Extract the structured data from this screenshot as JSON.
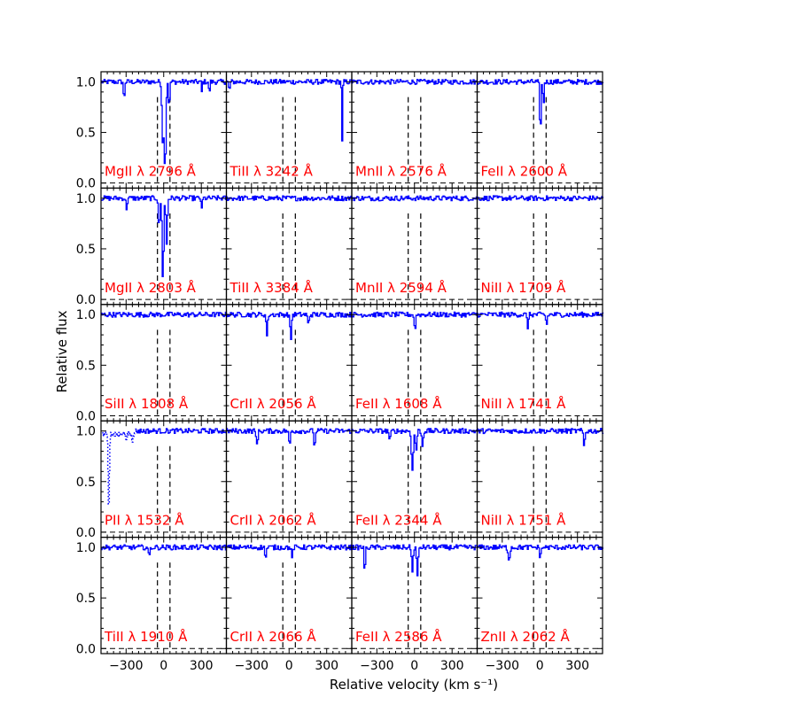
{
  "chart_data": {
    "type": "line",
    "xlabel": "Relative velocity (km s⁻¹)",
    "ylabel": "Relative flux",
    "xlim": [
      -500,
      500
    ],
    "ylim": [
      -0.05,
      1.1
    ],
    "xticks": [
      -300,
      0,
      300
    ],
    "yticks": [
      0.0,
      0.5,
      1.0
    ],
    "xtick_labels": [
      "−300",
      "0",
      "300"
    ],
    "ytick_labels": [
      "0.0",
      "0.5",
      "1.0"
    ],
    "component_markers": [
      -50,
      50
    ],
    "line_color": "#0000ff",
    "label_color": "#ff0000",
    "panels": [
      {
        "label": "MgII λ 2796 Å",
        "absorption": [
          {
            "v": -320,
            "depth": 0.2,
            "w": 6
          },
          {
            "v": -10,
            "depth": 0.6,
            "w": 10
          },
          {
            "v": 8,
            "depth": 0.85,
            "w": 9
          },
          {
            "v": 40,
            "depth": 0.3,
            "w": 6
          },
          {
            "v": 300,
            "depth": 0.1,
            "w": 5
          },
          {
            "v": 360,
            "depth": 0.15,
            "w": 5
          }
        ]
      },
      {
        "label": "TiII λ 3242 Å",
        "absorption": [
          {
            "v": -480,
            "depth": 0.08,
            "w": 8
          },
          {
            "v": 420,
            "depth": 0.6,
            "w": 5
          }
        ]
      },
      {
        "label": "MnII λ 2576 Å",
        "absorption": []
      },
      {
        "label": "FeII λ 2600 Å",
        "absorption": [
          {
            "v": 0,
            "depth": 0.55,
            "w": 7
          },
          {
            "v": 25,
            "depth": 0.25,
            "w": 6
          }
        ]
      },
      {
        "label": "MgII λ 2803 Å",
        "absorption": [
          {
            "v": -300,
            "depth": 0.1,
            "w": 8
          },
          {
            "v": -40,
            "depth": 0.3,
            "w": 8
          },
          {
            "v": -10,
            "depth": 0.8,
            "w": 9
          },
          {
            "v": 20,
            "depth": 0.45,
            "w": 8
          },
          {
            "v": 300,
            "depth": 0.12,
            "w": 6
          }
        ]
      },
      {
        "label": "TiII λ 3384 Å",
        "absorption": []
      },
      {
        "label": "MnII λ 2594 Å",
        "absorption": []
      },
      {
        "label": "NiII λ 1709 Å",
        "absorption": []
      },
      {
        "label": "SiII λ 1808 Å",
        "absorption": []
      },
      {
        "label": "CrII λ 2056 Å",
        "absorption": [
          {
            "v": -180,
            "depth": 0.2,
            "w": 8
          },
          {
            "v": 10,
            "depth": 0.25,
            "w": 8
          },
          {
            "v": 150,
            "depth": 0.1,
            "w": 8
          }
        ]
      },
      {
        "label": "FeII λ 1608 Å",
        "absorption": [
          {
            "v": 0,
            "depth": 0.15,
            "w": 8
          }
        ]
      },
      {
        "label": "NiII λ 1741 Å",
        "absorption": [
          {
            "v": -100,
            "depth": 0.12,
            "w": 8
          },
          {
            "v": 50,
            "depth": 0.1,
            "w": 8
          }
        ]
      },
      {
        "label": "PII λ 1532 Å",
        "absorption": []
      },
      {
        "label": "CrII λ 2062 Å",
        "absorption": [
          {
            "v": -260,
            "depth": 0.12,
            "w": 10
          },
          {
            "v": 0,
            "depth": 0.15,
            "w": 8
          },
          {
            "v": 200,
            "depth": 0.2,
            "w": 6
          }
        ]
      },
      {
        "label": "FeII λ 2344 Å",
        "absorption": [
          {
            "v": -200,
            "depth": 0.1,
            "w": 8
          },
          {
            "v": -20,
            "depth": 0.4,
            "w": 10
          },
          {
            "v": 10,
            "depth": 0.2,
            "w": 8
          },
          {
            "v": 60,
            "depth": 0.15,
            "w": 8
          }
        ]
      },
      {
        "label": "NiII λ 1751 Å",
        "absorption": [
          {
            "v": 350,
            "depth": 0.15,
            "w": 8
          }
        ]
      },
      {
        "label": "TiII λ 1910 Å",
        "absorption": [
          {
            "v": -120,
            "depth": 0.1,
            "w": 8
          }
        ]
      },
      {
        "label": "CrII λ 2066 Å",
        "absorption": [
          {
            "v": -190,
            "depth": 0.1,
            "w": 8
          },
          {
            "v": 20,
            "depth": 0.1,
            "w": 8
          }
        ]
      },
      {
        "label": "FeII λ 2586 Å",
        "absorption": [
          {
            "v": -400,
            "depth": 0.3,
            "w": 6
          },
          {
            "v": -20,
            "depth": 0.25,
            "w": 8
          },
          {
            "v": 20,
            "depth": 0.3,
            "w": 8
          }
        ]
      },
      {
        "label": "ZnII λ 2062 Å",
        "absorption": [
          {
            "v": -250,
            "depth": 0.12,
            "w": 10
          },
          {
            "v": 0,
            "depth": 0.1,
            "w": 8
          }
        ]
      }
    ],
    "dotted_series": {
      "panel": 12,
      "description_points": [
        {
          "v": -470,
          "y": 0.95
        },
        {
          "v": -440,
          "y": 0.22
        },
        {
          "v": -420,
          "y": 0.98
        },
        {
          "v": -380,
          "y": 0.96
        },
        {
          "v": -320,
          "y": 0.97
        },
        {
          "v": -300,
          "y": 0.92
        },
        {
          "v": -260,
          "y": 0.95
        },
        {
          "v": -240,
          "y": 0.9
        }
      ]
    }
  }
}
